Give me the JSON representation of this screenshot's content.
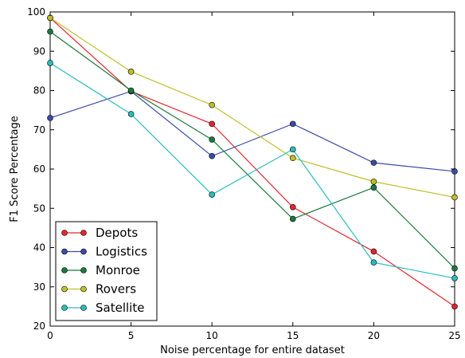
{
  "chart_data": {
    "type": "line",
    "title": "",
    "xlabel": "Noise percentage for entire dataset",
    "ylabel": "F1 Score Percentage",
    "x": [
      0,
      5,
      10,
      15,
      20,
      25
    ],
    "xlim": [
      0,
      25
    ],
    "ylim": [
      20,
      100
    ],
    "xticks": [
      0,
      5,
      10,
      15,
      20,
      25
    ],
    "yticks": [
      20,
      30,
      40,
      50,
      60,
      70,
      80,
      90,
      100
    ],
    "grid": false,
    "legend_position": "lower-left",
    "series": [
      {
        "name": "Depots",
        "color": "#e3262e",
        "values": [
          98.5,
          79.8,
          71.5,
          50.3,
          39.0,
          25.0
        ]
      },
      {
        "name": "Logistics",
        "color": "#3b4ba6",
        "values": [
          73.0,
          79.8,
          63.3,
          71.5,
          61.6,
          59.4
        ]
      },
      {
        "name": "Monroe",
        "color": "#1a7a3c",
        "values": [
          95.0,
          80.0,
          67.5,
          47.3,
          55.3,
          34.7
        ]
      },
      {
        "name": "Rovers",
        "color": "#bfbf2a",
        "values": [
          98.5,
          84.8,
          76.3,
          62.8,
          56.8,
          52.8
        ]
      },
      {
        "name": "Satellite",
        "color": "#2bbcbc",
        "values": [
          87.0,
          74.0,
          53.5,
          65.0,
          36.2,
          32.2
        ]
      }
    ]
  }
}
